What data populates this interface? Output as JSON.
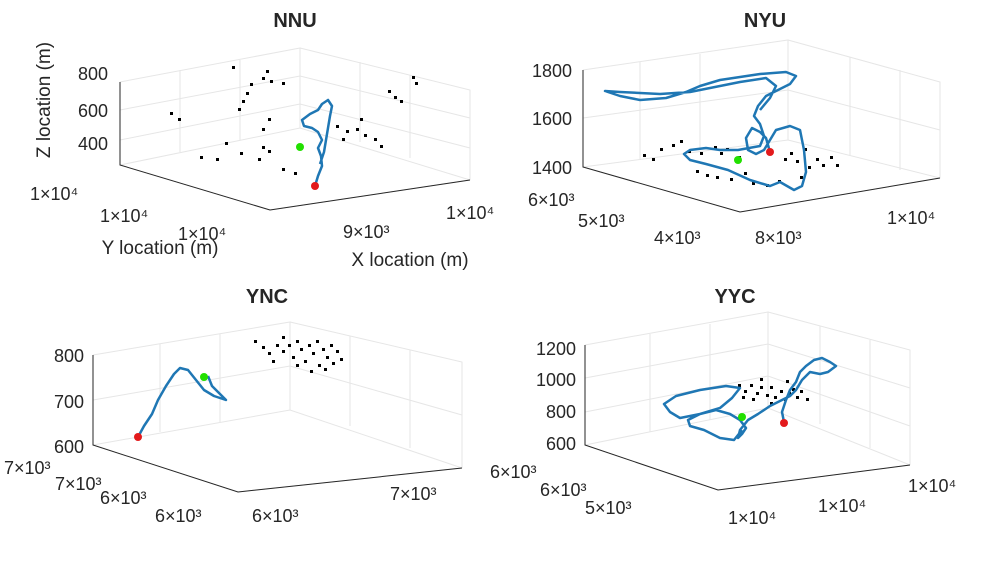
{
  "chart_data": [
    {
      "type": "scatter",
      "title": "NNU",
      "xlabel": "X location (m)",
      "ylabel": "Y location (m)",
      "zlabel": "Z location (m)",
      "z_ticks": [
        "400",
        "600",
        "800"
      ],
      "y_ticks": [
        "1×10⁴",
        "1×10⁴",
        "1×10⁴"
      ],
      "x_ticks": [
        "9×10³",
        "1×10⁴"
      ],
      "series": [
        {
          "name": "",
          "role": "track",
          "color": "#1f77b4"
        },
        {
          "name": "",
          "role": "points",
          "color": "#000000"
        },
        {
          "name": "",
          "role": "start",
          "color": "#00ff00"
        },
        {
          "name": "",
          "role": "end",
          "color": "#ff0000"
        }
      ],
      "grid": true
    },
    {
      "type": "scatter",
      "title": "NYU",
      "xlabel": "",
      "ylabel": "",
      "zlabel": "",
      "z_ticks": [
        "1400",
        "1600",
        "1800"
      ],
      "y_ticks": [
        "4×10³",
        "5×10³",
        "6×10³"
      ],
      "x_ticks": [
        "8×10³",
        "1×10⁴"
      ],
      "series": [
        {
          "name": "",
          "role": "track",
          "color": "#1f77b4"
        },
        {
          "name": "",
          "role": "points",
          "color": "#000000"
        },
        {
          "name": "",
          "role": "start",
          "color": "#00ff00"
        },
        {
          "name": "",
          "role": "end",
          "color": "#ff0000"
        }
      ],
      "grid": true
    },
    {
      "type": "scatter",
      "title": "YNC",
      "xlabel": "",
      "ylabel": "",
      "zlabel": "",
      "z_ticks": [
        "600",
        "700",
        "800"
      ],
      "y_ticks": [
        "6×10³",
        "6×10³",
        "7×10³",
        "7×10³"
      ],
      "x_ticks": [
        "6×10³",
        "7×10³"
      ],
      "series": [
        {
          "name": "",
          "role": "track",
          "color": "#1f77b4"
        },
        {
          "name": "",
          "role": "points",
          "color": "#000000"
        },
        {
          "name": "",
          "role": "start",
          "color": "#00ff00"
        },
        {
          "name": "",
          "role": "end",
          "color": "#ff0000"
        }
      ],
      "grid": true
    },
    {
      "type": "scatter",
      "title": "YYC",
      "xlabel": "",
      "ylabel": "",
      "zlabel": "",
      "z_ticks": [
        "600",
        "800",
        "1000",
        "1200"
      ],
      "y_ticks": [
        "5×10³",
        "6×10³",
        "6×10³"
      ],
      "x_ticks": [
        "1×10⁴",
        "1×10⁴",
        "1×10⁴"
      ],
      "series": [
        {
          "name": "",
          "role": "track",
          "color": "#1f77b4"
        },
        {
          "name": "",
          "role": "points",
          "color": "#000000"
        },
        {
          "name": "",
          "role": "start",
          "color": "#00ff00"
        },
        {
          "name": "",
          "role": "end",
          "color": "#ff0000"
        }
      ],
      "grid": true
    }
  ]
}
